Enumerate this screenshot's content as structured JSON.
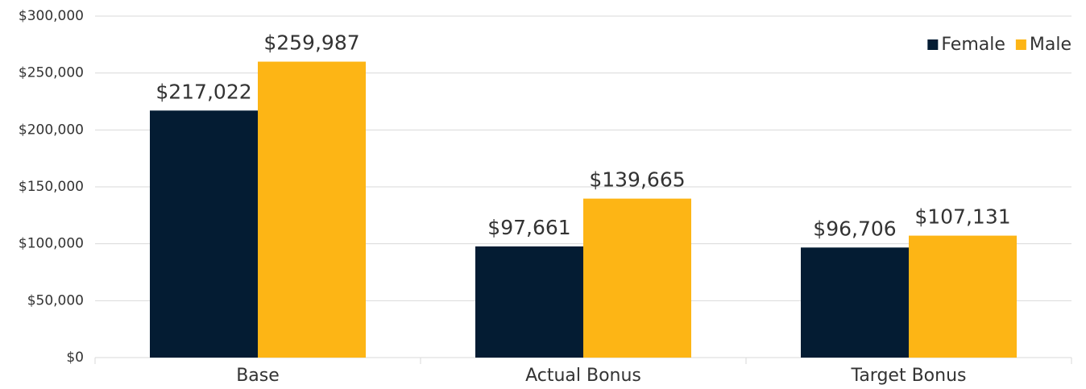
{
  "chart_data": {
    "type": "bar",
    "categories": [
      "Base",
      "Actual Bonus",
      "Target Bonus"
    ],
    "series": [
      {
        "name": "Female",
        "color": "#041c33",
        "values": [
          217022,
          97661,
          96706
        ],
        "value_labels": [
          "$217,022",
          "$97,661",
          "$96,706"
        ]
      },
      {
        "name": "Male",
        "color": "#fdb515",
        "values": [
          259987,
          139665,
          107131
        ],
        "value_labels": [
          "$259,987",
          "$139,665",
          "$107,131"
        ]
      }
    ],
    "ylim": [
      0,
      300000
    ],
    "yticks": [
      {
        "value": 0,
        "label": "$0"
      },
      {
        "value": 50000,
        "label": "$50,000"
      },
      {
        "value": 100000,
        "label": "$100,000"
      },
      {
        "value": 150000,
        "label": "$150,000"
      },
      {
        "value": 200000,
        "label": "$200,000"
      },
      {
        "value": 250000,
        "label": "$250,000"
      },
      {
        "value": 300000,
        "label": "$300,000"
      }
    ],
    "grid": true,
    "legend": "top-right"
  }
}
